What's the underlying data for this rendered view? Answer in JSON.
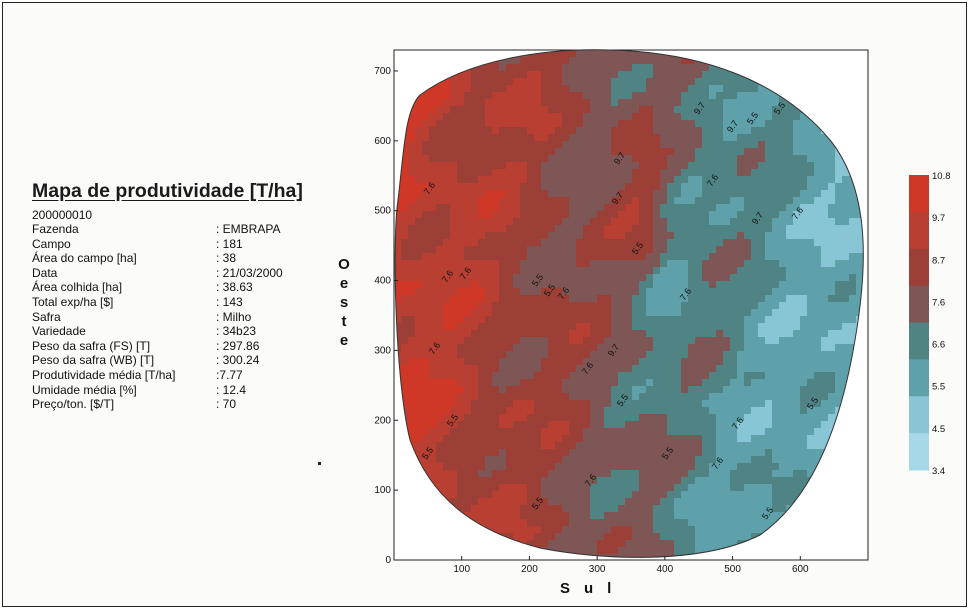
{
  "info": {
    "title": "Mapa de produtividade [T/ha]",
    "record_id": "200000010",
    "rows": [
      {
        "label": "Fazenda",
        "value": ": EMBRAPA"
      },
      {
        "label": "Campo",
        "value": ": 181"
      },
      {
        "label": "Área do campo [ha]",
        "value": ": 38"
      },
      {
        "label": "Data",
        "value": ": 21/03/2000"
      },
      {
        "label": "Área colhida [ha]",
        "value": ": 38.63"
      },
      {
        "label": "Total exp/ha [$]",
        "value": ": 143"
      },
      {
        "label": "Safra",
        "value": ": Milho"
      },
      {
        "label": "Variedade",
        "value": ": 34b23"
      },
      {
        "label": "Peso da safra (FS)   [T]",
        "value": ": 297.86"
      },
      {
        "label": "Peso da safra (WB)  [T]",
        "value": ": 300.24"
      },
      {
        "label": "Produtividade média [T/ha]",
        "value": ":7.77"
      },
      {
        "label": "Umidade média  [%]",
        "value": ": 12.4"
      },
      {
        "label": "Preço/ton.  [$/T]",
        "value": ": 70"
      }
    ]
  },
  "chart_data": {
    "type": "heatmap",
    "title": "Mapa de produtividade [T/ha]",
    "xlabel": "Sul",
    "ylabel": "Oeste",
    "xlim": [
      0,
      700
    ],
    "ylim": [
      0,
      730
    ],
    "xticks": [
      "100",
      "200",
      "300",
      "400",
      "500",
      "600"
    ],
    "yticks": [
      "0",
      "100",
      "200",
      "300",
      "400",
      "500",
      "600",
      "700"
    ],
    "contour_labels": [
      "7.6",
      "7.6",
      "7.6",
      "5.5",
      "5.5",
      "7.6",
      "7.6",
      "5.5",
      "5.5",
      "5.5",
      "7.6",
      "9.7",
      "9.7",
      "9.7",
      "7.6",
      "9.7",
      "7.6",
      "9.7",
      "9.7",
      "7.6",
      "7.6",
      "7.6",
      "5.5",
      "5.5",
      "5.5",
      "7.6",
      "5.5",
      "5.5",
      "5.5",
      "5.5"
    ],
    "legend": {
      "position": "right",
      "levels": [
        "10.8",
        "9.7",
        "8.7",
        "7.6",
        "6.6",
        "5.5",
        "4.5",
        "3.4"
      ],
      "colors": [
        "#cf3727",
        "#b93f33",
        "#9c3f36",
        "#7e5655",
        "#4f8384",
        "#5ea1aa",
        "#88c6d6",
        "#a6d8e8"
      ]
    },
    "grid": false
  }
}
